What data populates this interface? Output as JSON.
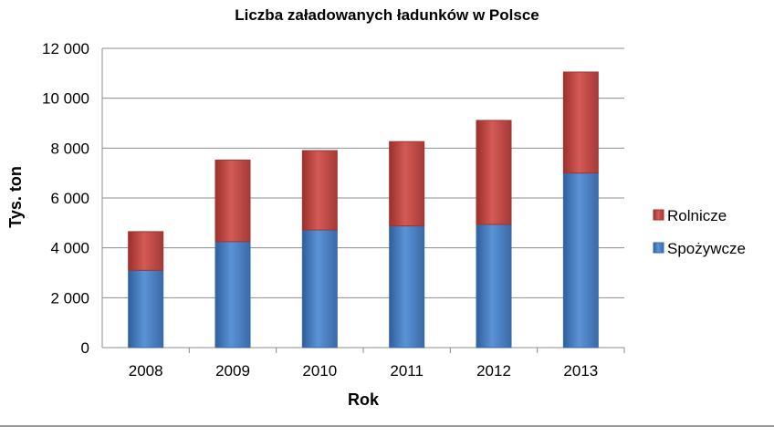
{
  "chart_data": {
    "type": "bar",
    "stacked": true,
    "title": "Liczba załadowanych ładunków w Polsce",
    "xlabel": "Rok",
    "ylabel": "Tys. ton",
    "categories": [
      "2008",
      "2009",
      "2010",
      "2011",
      "2012",
      "2013"
    ],
    "series": [
      {
        "name": "Spożywcze",
        "color": "#4a7ebb",
        "values": [
          3100,
          4250,
          4720,
          4880,
          4940,
          7000
        ]
      },
      {
        "name": "Rolnicze",
        "color": "#be4b48",
        "values": [
          1550,
          3270,
          3180,
          3380,
          4170,
          4050
        ]
      }
    ],
    "ylim": [
      0,
      12000
    ],
    "yticks": [
      "0",
      "2 000",
      "4 000",
      "6 000",
      "8 000",
      "10 000",
      "12 000"
    ],
    "grid": true,
    "legend_position": "right",
    "legend_order": [
      "Rolnicze",
      "Spożywcze"
    ]
  }
}
